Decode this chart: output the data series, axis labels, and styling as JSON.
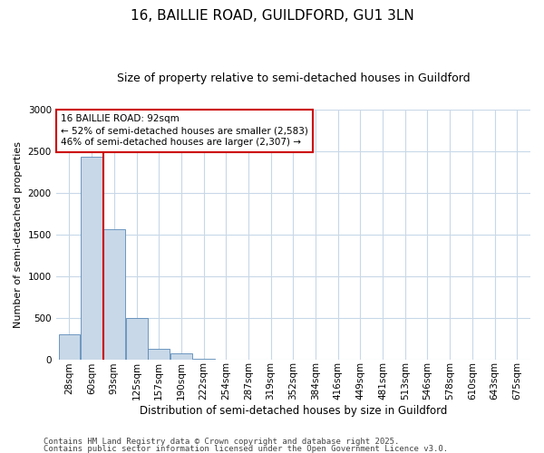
{
  "title1": "16, BAILLIE ROAD, GUILDFORD, GU1 3LN",
  "title2": "Size of property relative to semi-detached houses in Guildford",
  "xlabel": "Distribution of semi-detached houses by size in Guildford",
  "ylabel": "Number of semi-detached properties",
  "bin_labels": [
    "28sqm",
    "60sqm",
    "93sqm",
    "125sqm",
    "157sqm",
    "190sqm",
    "222sqm",
    "254sqm",
    "287sqm",
    "319sqm",
    "352sqm",
    "384sqm",
    "416sqm",
    "449sqm",
    "481sqm",
    "513sqm",
    "546sqm",
    "578sqm",
    "610sqm",
    "643sqm",
    "675sqm"
  ],
  "bin_values": [
    300,
    2430,
    1560,
    500,
    130,
    70,
    10,
    0,
    0,
    0,
    0,
    0,
    0,
    0,
    0,
    0,
    0,
    0,
    0,
    0,
    0
  ],
  "bar_color": "#c8d8e8",
  "bar_edge_color": "#5a8ab8",
  "vline_color": "#cc0000",
  "vline_x": 1.5,
  "annotation_text": "16 BAILLIE ROAD: 92sqm\n← 52% of semi-detached houses are smaller (2,583)\n46% of semi-detached houses are larger (2,307) →",
  "annotation_box_color": "#cc0000",
  "ylim": [
    0,
    3000
  ],
  "yticks": [
    0,
    500,
    1000,
    1500,
    2000,
    2500,
    3000
  ],
  "footer1": "Contains HM Land Registry data © Crown copyright and database right 2025.",
  "footer2": "Contains public sector information licensed under the Open Government Licence v3.0.",
  "bg_color": "#ffffff",
  "grid_color": "#c8d8e8",
  "title1_fontsize": 11,
  "title2_fontsize": 9,
  "ylabel_fontsize": 8,
  "xlabel_fontsize": 8.5,
  "tick_fontsize": 7.5,
  "footer_fontsize": 6.5
}
